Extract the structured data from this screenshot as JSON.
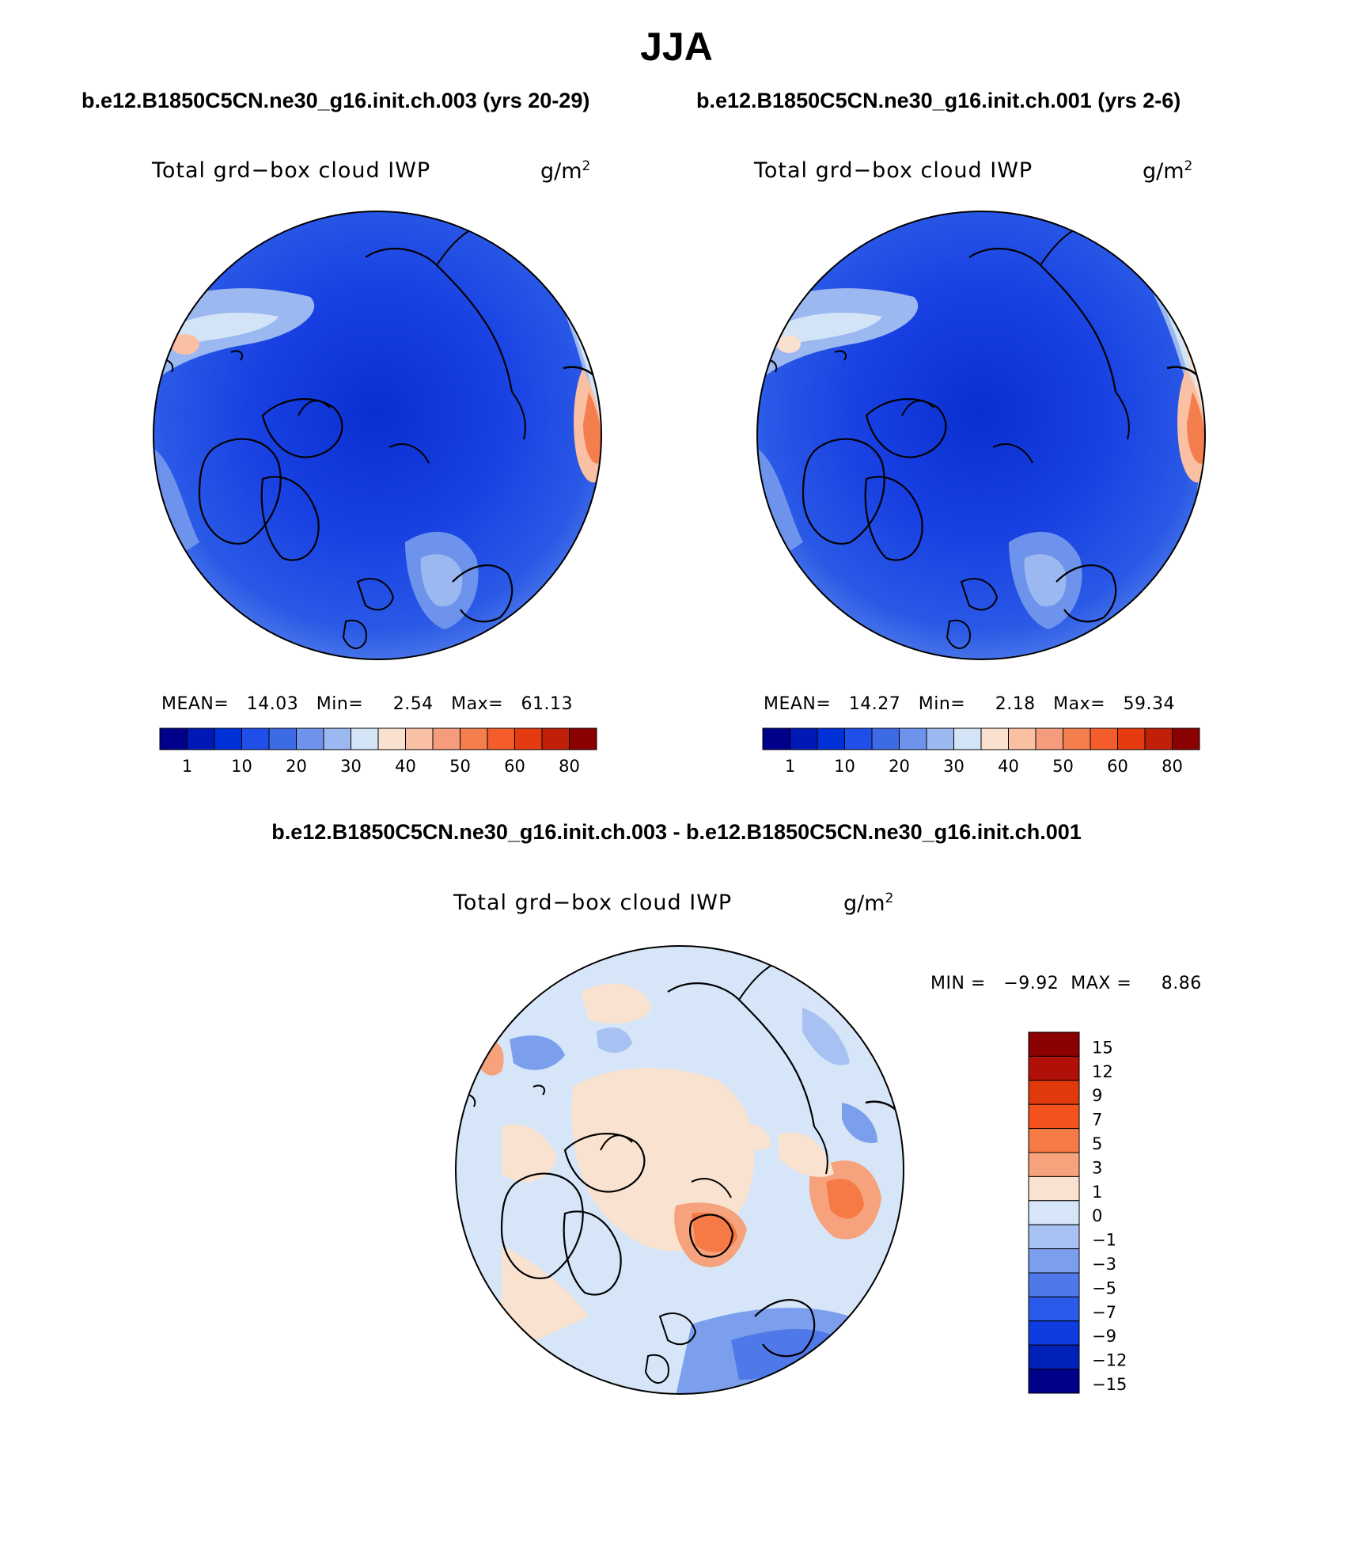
{
  "figure": {
    "season": "JJA",
    "panels": [
      {
        "case": "b.e12.B1850C5CN.ne30_g16.init.ch.003 (yrs 20-29)",
        "variable": "Total grd−box cloud IWP",
        "units_base": "g/m",
        "units_exp": "2",
        "stats": "MEAN=   14.03   Min=     2.54   Max=   61.13"
      },
      {
        "case": "b.e12.B1850C5CN.ne30_g16.init.ch.001 (yrs 2-6)",
        "variable": "Total grd−box cloud IWP",
        "units_base": "g/m",
        "units_exp": "2",
        "stats": "MEAN=   14.27   Min=     2.18   Max=   59.34"
      }
    ],
    "difference": {
      "title": "b.e12.B1850C5CN.ne30_g16.init.ch.003 - b.e12.B1850C5CN.ne30_g16.init.ch.001",
      "variable": "Total grd−box cloud IWP",
      "units_base": "g/m",
      "units_exp": "2",
      "stats": "MIN =   −9.92  MAX =     8.86"
    }
  },
  "colorbar_abs": {
    "colors": [
      "#00008b",
      "#0019b4",
      "#0030d8",
      "#1f4fe8",
      "#3d6be6",
      "#6d93ec",
      "#9cb8f0",
      "#d3e4f7",
      "#fae1cf",
      "#f9c0a3",
      "#f59c7c",
      "#f57e4f",
      "#f45c2b",
      "#e63a10",
      "#c01f08",
      "#8b0000"
    ],
    "labels": [
      "1",
      "10",
      "20",
      "30",
      "40",
      "50",
      "60",
      "80"
    ]
  },
  "colorbar_diff": {
    "colors": [
      "#8b0000",
      "#b01008",
      "#e03a0c",
      "#f4531d",
      "#f57a45",
      "#f6a27c",
      "#f9e2cf",
      "#d6e6f8",
      "#a7c2f2",
      "#7b9fec",
      "#4f79e8",
      "#2a5ae9",
      "#0d3ce0",
      "#0021b8",
      "#00008b"
    ],
    "labels": [
      "15",
      "12",
      "9",
      "7",
      "5",
      "3",
      "1",
      "0",
      "−1",
      "−3",
      "−5",
      "−7",
      "−9",
      "−12",
      "−15"
    ]
  }
}
